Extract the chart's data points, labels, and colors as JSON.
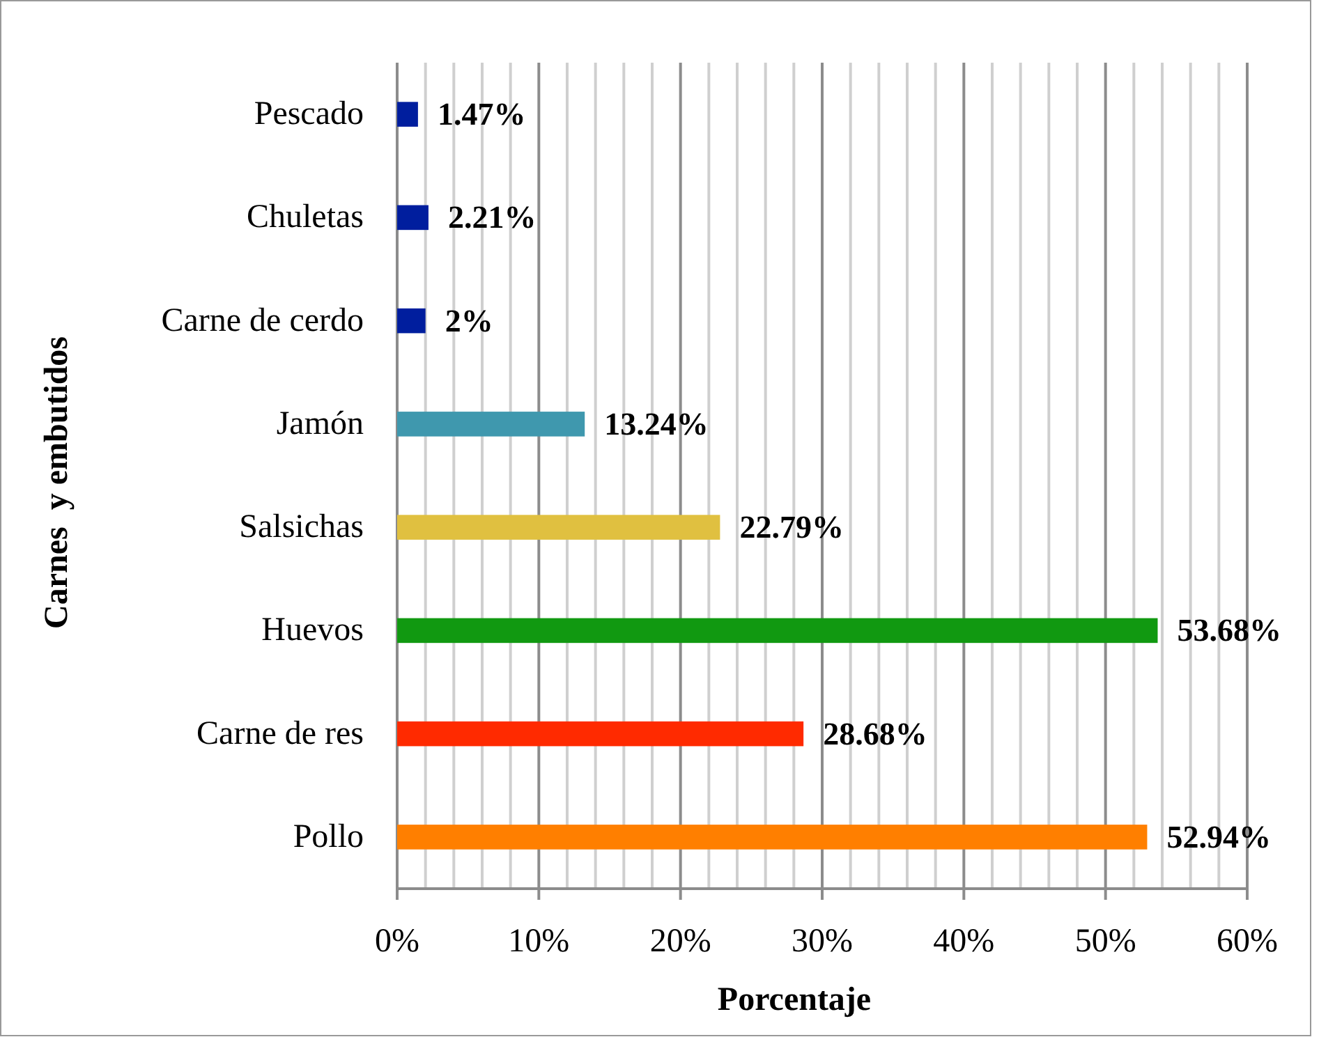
{
  "chart_data": {
    "type": "bar",
    "orientation": "horizontal",
    "xlabel": "Porcentaje",
    "ylabel": "Carnes  y embutidos",
    "categories": [
      "Pescado",
      "Chuletas",
      "Carne de cerdo",
      "Jamón",
      "Salsichas",
      "Huevos",
      "Carne de res",
      "Pollo"
    ],
    "values": [
      1.47,
      2.21,
      2,
      13.24,
      22.79,
      53.68,
      28.68,
      52.94
    ],
    "colors": [
      "#001e9e",
      "#001e9e",
      "#001e9e",
      "#3f98ae",
      "#e0c040",
      "#119911",
      "#ff2a00",
      "#ff7f00"
    ],
    "value_labels": [
      "1.47%",
      "2.21%",
      "2%",
      "13.24%",
      "22.79%",
      "53.68%",
      "28.68%",
      "52.94%"
    ],
    "xlim": [
      0,
      60
    ],
    "xticks": [
      {
        "value": 0,
        "label": "0%"
      },
      {
        "value": 2,
        "label": null
      },
      {
        "value": 4,
        "label": null
      },
      {
        "value": 6,
        "label": null
      },
      {
        "value": 8,
        "label": null
      },
      {
        "value": 10,
        "label": "10%"
      },
      {
        "value": 12,
        "label": null
      },
      {
        "value": 14,
        "label": null
      },
      {
        "value": 16,
        "label": null
      },
      {
        "value": 18,
        "label": null
      },
      {
        "value": 20,
        "label": "20%"
      },
      {
        "value": 22,
        "label": null
      },
      {
        "value": 24,
        "label": null
      },
      {
        "value": 26,
        "label": null
      },
      {
        "value": 28,
        "label": null
      },
      {
        "value": 30,
        "label": "30%"
      },
      {
        "value": 32,
        "label": null
      },
      {
        "value": 34,
        "label": null
      },
      {
        "value": 36,
        "label": null
      },
      {
        "value": 38,
        "label": null
      },
      {
        "value": 40,
        "label": "40%"
      },
      {
        "value": 42,
        "label": null
      },
      {
        "value": 44,
        "label": null
      },
      {
        "value": 46,
        "label": null
      },
      {
        "value": 48,
        "label": null
      },
      {
        "value": 50,
        "label": "50%"
      },
      {
        "value": 52,
        "label": null
      },
      {
        "value": 54,
        "label": null
      },
      {
        "value": 56,
        "label": null
      },
      {
        "value": 58,
        "label": null
      },
      {
        "value": 60,
        "label": "60%"
      }
    ],
    "grid": "x"
  }
}
